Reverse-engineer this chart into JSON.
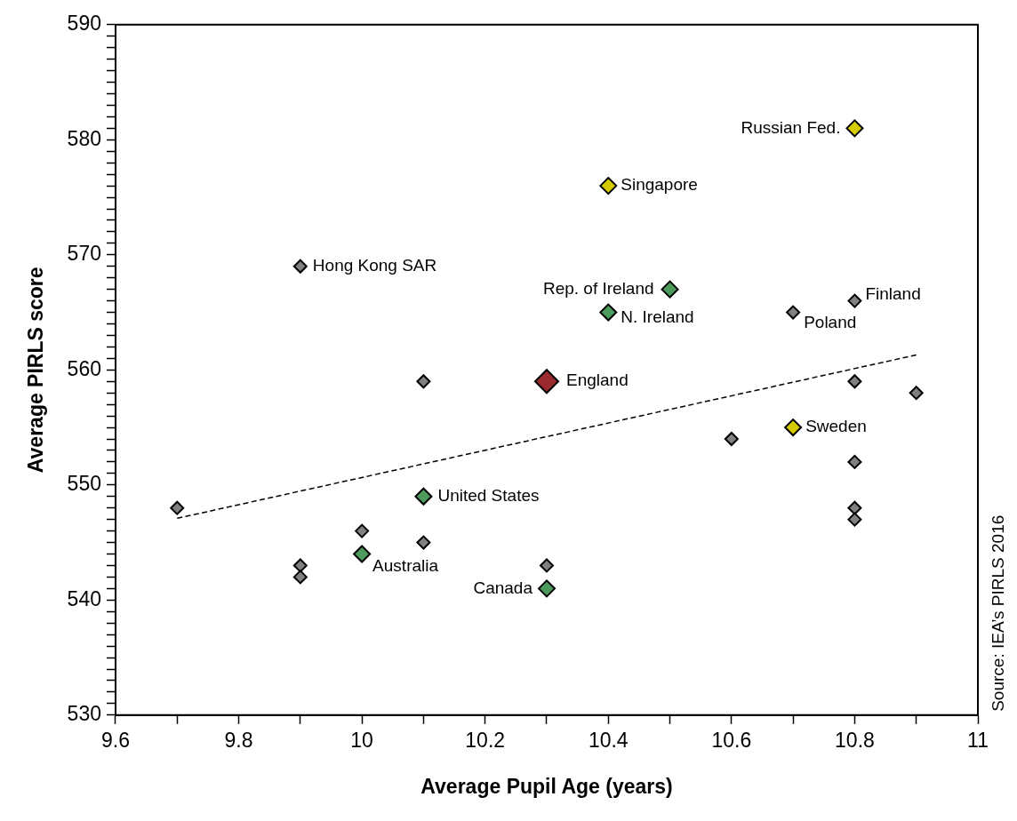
{
  "chart_data": {
    "type": "scatter",
    "xlabel": "Average Pupil Age (years)",
    "ylabel": "Average PIRLS score",
    "marker": "diamond",
    "grid": false,
    "legend": false,
    "xlim": [
      9.6,
      11
    ],
    "ylim": [
      530,
      590
    ],
    "xticks": [
      9.6,
      {
        "value": 9.7,
        "label": null
      },
      9.8,
      {
        "value": 9.9,
        "label": null
      },
      10,
      {
        "value": 10.1,
        "label": null
      },
      10.2,
      {
        "value": 10.3,
        "label": null
      },
      10.4,
      {
        "value": 10.5,
        "label": null
      },
      10.6,
      {
        "value": 10.7,
        "label": null
      },
      10.8,
      {
        "value": 10.9,
        "label": null
      },
      11
    ],
    "yticks": [
      530,
      {
        "value": 531,
        "label": null
      },
      {
        "value": 532,
        "label": null
      },
      {
        "value": 533,
        "label": null
      },
      {
        "value": 534,
        "label": null
      },
      {
        "value": 535,
        "label": null
      },
      {
        "value": 536,
        "label": null
      },
      {
        "value": 537,
        "label": null
      },
      {
        "value": 538,
        "label": null
      },
      {
        "value": 539,
        "label": null
      },
      540,
      {
        "value": 541,
        "label": null
      },
      {
        "value": 542,
        "label": null
      },
      {
        "value": 543,
        "label": null
      },
      {
        "value": 544,
        "label": null
      },
      {
        "value": 545,
        "label": null
      },
      {
        "value": 546,
        "label": null
      },
      {
        "value": 547,
        "label": null
      },
      {
        "value": 548,
        "label": null
      },
      {
        "value": 549,
        "label": null
      },
      550,
      {
        "value": 551,
        "label": null
      },
      {
        "value": 552,
        "label": null
      },
      {
        "value": 553,
        "label": null
      },
      {
        "value": 554,
        "label": null
      },
      {
        "value": 555,
        "label": null
      },
      {
        "value": 556,
        "label": null
      },
      {
        "value": 557,
        "label": null
      },
      {
        "value": 558,
        "label": null
      },
      {
        "value": 559,
        "label": null
      },
      560,
      {
        "value": 561,
        "label": null
      },
      {
        "value": 562,
        "label": null
      },
      {
        "value": 563,
        "label": null
      },
      {
        "value": 564,
        "label": null
      },
      {
        "value": 565,
        "label": null
      },
      {
        "value": 566,
        "label": null
      },
      {
        "value": 567,
        "label": null
      },
      {
        "value": 568,
        "label": null
      },
      {
        "value": 569,
        "label": null
      },
      570,
      {
        "value": 571,
        "label": null
      },
      {
        "value": 572,
        "label": null
      },
      {
        "value": 573,
        "label": null
      },
      {
        "value": 574,
        "label": null
      },
      {
        "value": 575,
        "label": null
      },
      {
        "value": 576,
        "label": null
      },
      {
        "value": 577,
        "label": null
      },
      {
        "value": 578,
        "label": null
      },
      {
        "value": 579,
        "label": null
      },
      580,
      {
        "value": 581,
        "label": null
      },
      {
        "value": 582,
        "label": null
      },
      {
        "value": 583,
        "label": null
      },
      {
        "value": 584,
        "label": null
      },
      {
        "value": 585,
        "label": null
      },
      {
        "value": 586,
        "label": null
      },
      {
        "value": 587,
        "label": null
      },
      {
        "value": 588,
        "label": null
      },
      {
        "value": 589,
        "label": null
      },
      590
    ],
    "series": [
      {
        "type": "line",
        "color": "#000000",
        "line_style": "dashed",
        "marker": "none",
        "x": [
          9.7,
          10.9
        ],
        "values": [
          547.1,
          561.3
        ]
      },
      {
        "color": "#808080",
        "x": [
          9.7,
          9.9,
          9.9,
          9.9,
          10.0,
          10.1,
          10.1,
          10.3,
          10.6,
          10.7,
          10.8,
          10.8,
          10.8,
          10.8,
          10.8,
          10.9
        ],
        "values": [
          548,
          569,
          543,
          542,
          546,
          559,
          545,
          543,
          554,
          565,
          566,
          559,
          552,
          548,
          547,
          558
        ]
      },
      {
        "color": "#4c9a5c",
        "x": [
          10.0,
          10.1,
          10.3,
          10.4,
          10.5
        ],
        "values": [
          544,
          549,
          541,
          565,
          567
        ]
      },
      {
        "color": "#d4cc00",
        "x": [
          10.4,
          10.7,
          10.8
        ],
        "values": [
          576,
          555,
          581
        ]
      },
      {
        "color": "#9b2a2e",
        "x": [
          10.3
        ],
        "values": [
          559
        ]
      }
    ],
    "annotations": [
      {
        "text": "Hong Kong SAR",
        "x": 9.9,
        "y": 569
      },
      {
        "text": "Russian Fed.",
        "x": 10.8,
        "y": 581
      },
      {
        "text": "Singapore",
        "x": 10.4,
        "y": 576
      },
      {
        "text": "Rep. of Ireland",
        "x": 10.5,
        "y": 567
      },
      {
        "text": "N. Ireland",
        "x": 10.4,
        "y": 565
      },
      {
        "text": "Finland",
        "x": 10.8,
        "y": 566
      },
      {
        "text": "Poland",
        "x": 10.7,
        "y": 565
      },
      {
        "text": "England",
        "x": 10.3,
        "y": 559
      },
      {
        "text": "Sweden",
        "x": 10.7,
        "y": 555
      },
      {
        "text": "United States",
        "x": 10.1,
        "y": 549
      },
      {
        "text": "Australia",
        "x": 10.0,
        "y": 544
      },
      {
        "text": "Canada",
        "x": 10.3,
        "y": 541
      },
      "Source: IEA’s PIRLS 2016"
    ]
  }
}
